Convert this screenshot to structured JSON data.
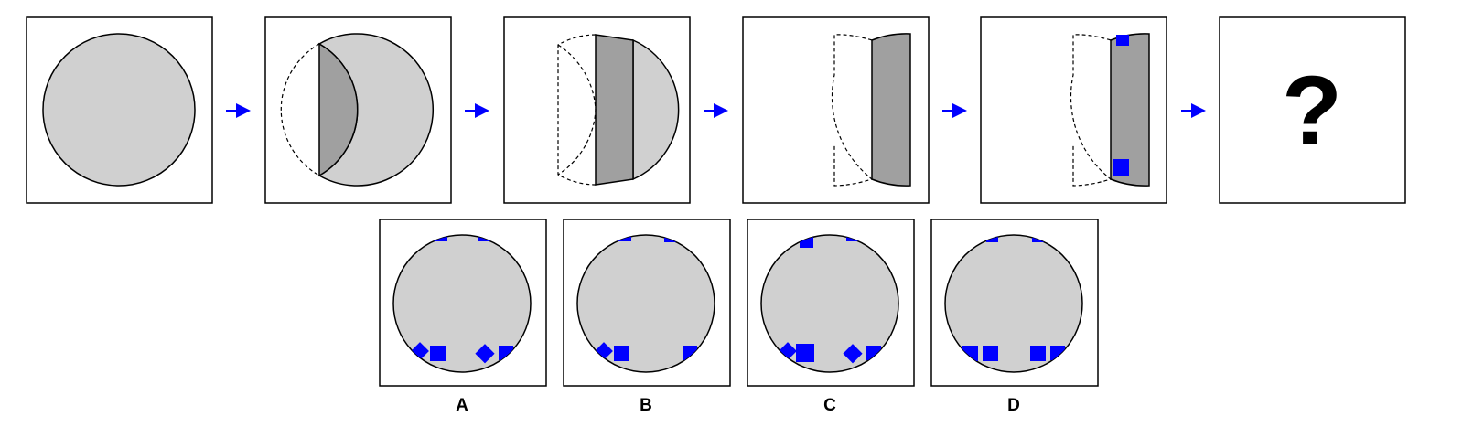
{
  "sequence": {
    "question_mark": "?"
  },
  "options": {
    "labels": [
      "A",
      "B",
      "C",
      "D"
    ]
  },
  "colors": {
    "circle_fill": "#d0d0d0",
    "strip_fill": "#a0a0a0",
    "square_fill": "#0000ff",
    "arrow": "#0000ff",
    "stroke": "#000000"
  }
}
